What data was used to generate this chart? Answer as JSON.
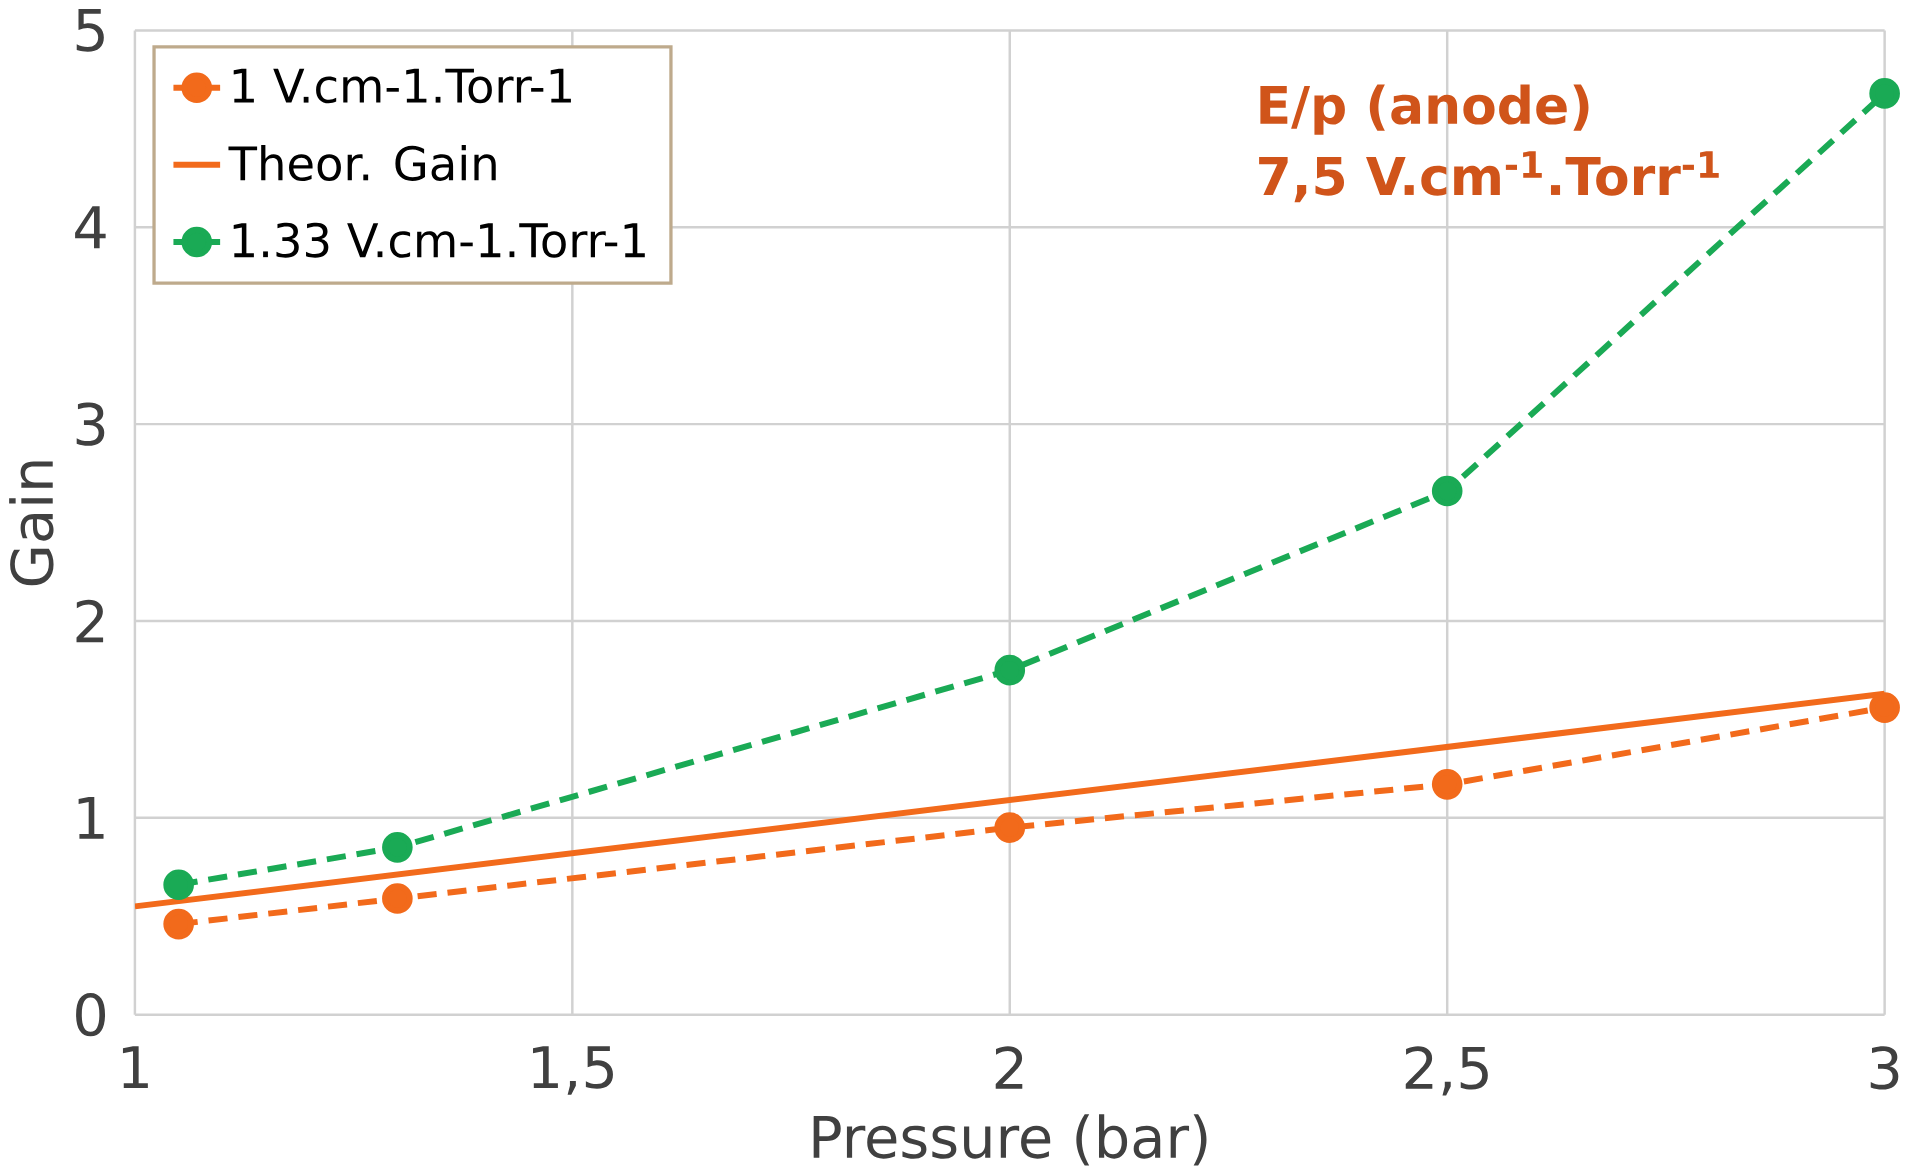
{
  "chart_data": {
    "type": "line",
    "xlabel": "Pressure (bar)",
    "ylabel": "Gain",
    "xlim": [
      1,
      3
    ],
    "ylim": [
      0,
      5
    ],
    "xticks": [
      1,
      {
        "value": 1.5,
        "label": "1,5"
      },
      2,
      {
        "value": 2.5,
        "label": "2,5"
      },
      3
    ],
    "yticks": [
      0,
      1,
      2,
      3,
      4,
      5
    ],
    "grid": true,
    "legend": "top left",
    "annotations": [
      "E/p (anode)",
      "7,5 V.cm$^{-1}$.Torr$^{-1}$"
    ],
    "series": [
      {
        "name": "1 V.cm-1.Torr-1",
        "color": "#f26a1b",
        "marker": "circle",
        "line_style": "dashed",
        "x": [
          1.05,
          1.3,
          2,
          2.5,
          3
        ],
        "values": [
          0.46,
          0.59,
          0.95,
          1.17,
          1.56
        ]
      },
      {
        "name": "Theor. Gain",
        "color": "#f26a1b",
        "marker": "none",
        "line_style": "solid",
        "x": [
          1,
          3
        ],
        "values": [
          0.55,
          1.63
        ]
      },
      {
        "name": "1.33 V.cm-1.Torr-1",
        "color": "#1aaa55",
        "marker": "circle",
        "line_style": "dashed",
        "x": [
          1.05,
          1.3,
          2,
          2.5,
          3
        ],
        "values": [
          0.66,
          0.85,
          1.75,
          2.66,
          4.68
        ]
      }
    ]
  }
}
